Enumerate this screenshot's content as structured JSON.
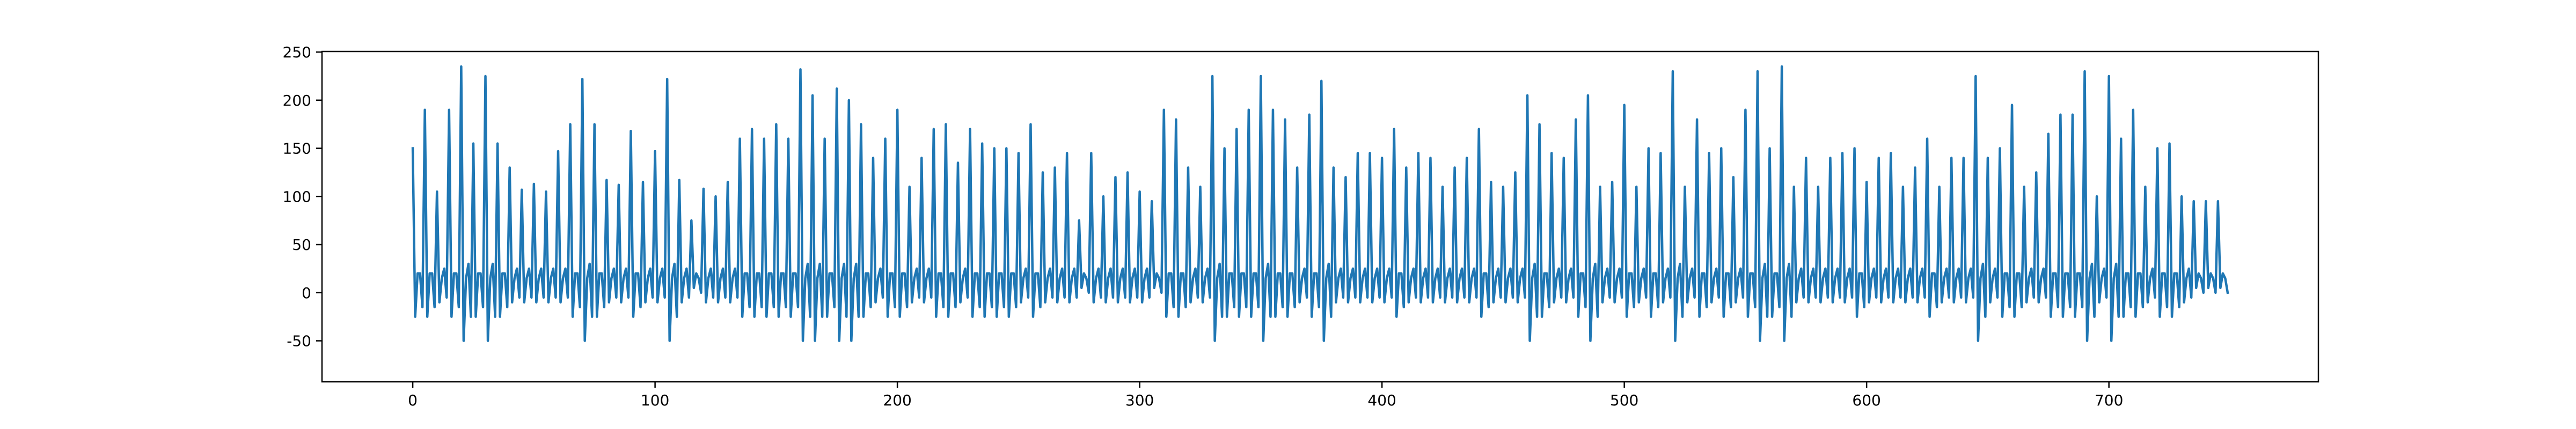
{
  "chart_data": {
    "type": "line",
    "xlim": [
      -37.45,
      786.45
    ],
    "xticks": [
      0,
      100,
      200,
      300,
      400,
      500,
      600,
      700
    ],
    "ylim": [
      -92.6,
      250.6
    ],
    "yticks": [
      -50,
      0,
      50,
      100,
      150,
      200,
      250
    ],
    "series": [
      {
        "color": "#1f77b4",
        "values": [
          150,
          -25,
          20,
          20,
          -15,
          190,
          -25,
          20,
          20,
          -15,
          105,
          -10,
          15,
          25,
          -5,
          190,
          -25,
          20,
          20,
          -15,
          235,
          -50,
          15,
          30,
          -25,
          155,
          -25,
          20,
          20,
          -15,
          225,
          -50,
          15,
          30,
          -25,
          155,
          -25,
          20,
          20,
          -15,
          130,
          -10,
          15,
          25,
          -5,
          107,
          -10,
          15,
          25,
          -5,
          113,
          -10,
          15,
          25,
          -5,
          105,
          -10,
          15,
          25,
          -5,
          147,
          -10,
          15,
          25,
          -5,
          175,
          -25,
          20,
          20,
          -15,
          222,
          -50,
          15,
          30,
          -25,
          175,
          -25,
          20,
          20,
          -15,
          117,
          -10,
          15,
          25,
          -5,
          112,
          -10,
          15,
          25,
          -5,
          168,
          -25,
          20,
          20,
          -15,
          115,
          -10,
          15,
          25,
          -5,
          147,
          -10,
          15,
          25,
          -5,
          222,
          -50,
          15,
          30,
          -25,
          117,
          -10,
          15,
          25,
          -5,
          75,
          5,
          20,
          15,
          0,
          108,
          -10,
          15,
          25,
          -5,
          100,
          -10,
          15,
          25,
          -5,
          115,
          -10,
          15,
          25,
          -5,
          160,
          -25,
          20,
          20,
          -15,
          170,
          -25,
          20,
          20,
          -15,
          160,
          -25,
          20,
          20,
          -15,
          175,
          -25,
          20,
          20,
          -15,
          160,
          -25,
          20,
          20,
          -15,
          232,
          -50,
          15,
          30,
          -25,
          205,
          -50,
          15,
          30,
          -25,
          160,
          -25,
          20,
          20,
          -15,
          212,
          -50,
          15,
          30,
          -25,
          200,
          -50,
          15,
          30,
          -25,
          175,
          -25,
          20,
          20,
          -15,
          140,
          -10,
          15,
          25,
          -5,
          160,
          -25,
          20,
          20,
          -15,
          190,
          -25,
          20,
          20,
          -15,
          110,
          -10,
          15,
          25,
          -5,
          140,
          -10,
          15,
          25,
          -5,
          170,
          -25,
          20,
          20,
          -15,
          175,
          -25,
          20,
          20,
          -15,
          135,
          -10,
          15,
          25,
          -5,
          170,
          -25,
          20,
          20,
          -15,
          155,
          -25,
          20,
          20,
          -15,
          150,
          -25,
          20,
          20,
          -15,
          150,
          -25,
          20,
          20,
          -15,
          145,
          -10,
          15,
          25,
          -5,
          175,
          -25,
          20,
          20,
          -15,
          125,
          -10,
          15,
          25,
          -5,
          130,
          -10,
          15,
          25,
          -5,
          145,
          -10,
          15,
          25,
          -5,
          75,
          5,
          20,
          15,
          0,
          145,
          -10,
          15,
          25,
          -5,
          100,
          -10,
          15,
          25,
          -5,
          120,
          -10,
          15,
          25,
          -5,
          125,
          -10,
          15,
          25,
          -5,
          105,
          -10,
          15,
          25,
          -5,
          95,
          5,
          20,
          15,
          0,
          190,
          -25,
          20,
          20,
          -15,
          180,
          -25,
          20,
          20,
          -15,
          130,
          -10,
          15,
          25,
          -5,
          110,
          -10,
          15,
          25,
          -5,
          225,
          -50,
          15,
          30,
          -25,
          150,
          -25,
          20,
          20,
          -15,
          170,
          -25,
          20,
          20,
          -15,
          190,
          -25,
          20,
          20,
          -15,
          225,
          -50,
          15,
          30,
          -25,
          190,
          -25,
          20,
          20,
          -15,
          180,
          -25,
          20,
          20,
          -15,
          130,
          -10,
          15,
          25,
          -5,
          185,
          -25,
          20,
          20,
          -15,
          220,
          -50,
          15,
          30,
          -25,
          130,
          -10,
          15,
          25,
          -5,
          120,
          -10,
          15,
          25,
          -5,
          145,
          -10,
          15,
          25,
          -5,
          145,
          -10,
          15,
          25,
          -5,
          140,
          -10,
          15,
          25,
          -5,
          170,
          -25,
          20,
          20,
          -15,
          130,
          -10,
          15,
          25,
          -5,
          145,
          -10,
          15,
          25,
          -5,
          140,
          -10,
          15,
          25,
          -5,
          110,
          -10,
          15,
          25,
          -5,
          130,
          -10,
          15,
          25,
          -5,
          140,
          -10,
          15,
          25,
          -5,
          170,
          -25,
          20,
          20,
          -15,
          115,
          -10,
          15,
          25,
          -5,
          110,
          -10,
          15,
          25,
          -5,
          125,
          -10,
          15,
          25,
          -5,
          205,
          -50,
          15,
          30,
          -25,
          175,
          -25,
          20,
          20,
          -15,
          145,
          -10,
          15,
          25,
          -5,
          140,
          -10,
          15,
          25,
          -5,
          180,
          -25,
          20,
          20,
          -15,
          205,
          -50,
          15,
          30,
          -25,
          110,
          -10,
          15,
          25,
          -5,
          115,
          -10,
          15,
          25,
          -5,
          195,
          -25,
          20,
          20,
          -15,
          110,
          -10,
          15,
          25,
          -5,
          150,
          -25,
          20,
          20,
          -15,
          145,
          -10,
          15,
          25,
          -5,
          230,
          -50,
          15,
          30,
          -25,
          110,
          -10,
          15,
          25,
          -5,
          180,
          -25,
          20,
          20,
          -15,
          145,
          -10,
          15,
          25,
          -5,
          150,
          -25,
          20,
          20,
          -15,
          120,
          -10,
          15,
          25,
          -5,
          190,
          -25,
          20,
          20,
          -15,
          230,
          -50,
          15,
          30,
          -25,
          150,
          -25,
          20,
          20,
          -15,
          235,
          -50,
          15,
          30,
          -25,
          110,
          -10,
          15,
          25,
          -5,
          140,
          -10,
          15,
          25,
          -5,
          110,
          -10,
          15,
          25,
          -5,
          140,
          -10,
          15,
          25,
          -5,
          145,
          -10,
          15,
          25,
          -5,
          150,
          -25,
          20,
          20,
          -15,
          115,
          -10,
          15,
          25,
          -5,
          140,
          -10,
          15,
          25,
          -5,
          145,
          -10,
          15,
          25,
          -5,
          110,
          -10,
          15,
          25,
          -5,
          130,
          -10,
          15,
          25,
          -5,
          160,
          -25,
          20,
          20,
          -15,
          110,
          -10,
          15,
          25,
          -5,
          140,
          -10,
          15,
          25,
          -5,
          140,
          -10,
          15,
          25,
          -5,
          225,
          -50,
          15,
          30,
          -25,
          140,
          -10,
          15,
          25,
          -5,
          150,
          -25,
          20,
          20,
          -15,
          195,
          -25,
          20,
          20,
          -15,
          110,
          -10,
          15,
          25,
          -5,
          125,
          -10,
          15,
          25,
          -5,
          165,
          -25,
          20,
          20,
          -15,
          185,
          -25,
          20,
          20,
          -15,
          185,
          -25,
          20,
          20,
          -15,
          230,
          -50,
          15,
          30,
          -25,
          100,
          -10,
          15,
          25,
          -5,
          225,
          -50,
          15,
          30,
          -25,
          160,
          -25,
          20,
          20,
          -15,
          190,
          -25,
          20,
          20,
          -15,
          110,
          -10,
          15,
          25,
          -5,
          150,
          -25,
          20,
          20,
          -15,
          155,
          -25,
          20,
          20,
          -15,
          100,
          -10,
          15,
          25,
          -5,
          95,
          5,
          20,
          15,
          0,
          95,
          5,
          20,
          15,
          0,
          95,
          5,
          20,
          15,
          0
        ]
      }
    ]
  }
}
